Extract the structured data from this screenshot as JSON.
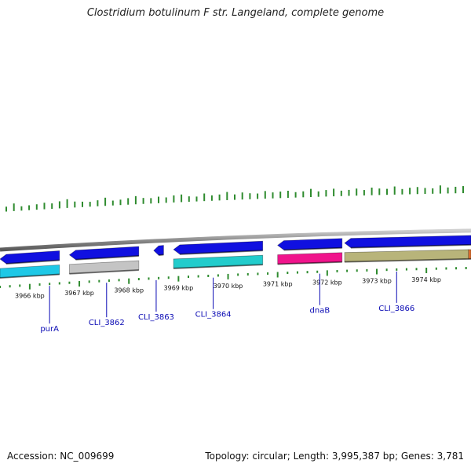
{
  "title": "Clostridium botulinum F str. Langeland, complete genome",
  "footer": {
    "accession": "Accession: NC_009699",
    "stats": "Topology: circular; Length: 3,995,387 bp; Genes: 3,781"
  },
  "colors": {
    "background": "#ffffff",
    "backbone": "#8c8c8c",
    "tick": "#2e8b2e",
    "label": "#0a0ab4",
    "strand_forward": "#1010e0",
    "gene_cyan": "#1ec8e6",
    "gene_gray": "#c4c4c4",
    "gene_teal": "#22cccc",
    "gene_pink": "#f0148c",
    "gene_khaki": "#b8b47a",
    "gene_orange": "#e07030"
  },
  "view": {
    "start_kbp": 3965.4,
    "end_kbp": 3974.9
  },
  "scale": {
    "labeled_ticks_kbp": [
      3966,
      3967,
      3968,
      3969,
      3970,
      3971,
      3972,
      3973,
      3974
    ],
    "label_suffix": " kbp"
  },
  "genes": [
    {
      "name": "purA",
      "strand": "reverse",
      "start_kbp": 3965.4,
      "end_kbp": 3966.6,
      "color": "#1010e0",
      "label_at_kbp": 3966.4,
      "label_tier": 2
    },
    {
      "name": "",
      "strand": "forward",
      "start_kbp": 3965.4,
      "end_kbp": 3966.6,
      "color": "#1ec8e6"
    },
    {
      "name": "CLI_3862",
      "strand": "reverse",
      "start_kbp": 3966.8,
      "end_kbp": 3968.2,
      "color": "#1010e0",
      "label_at_kbp": 3967.55,
      "label_tier": 1
    },
    {
      "name": "",
      "strand": "forward",
      "start_kbp": 3966.8,
      "end_kbp": 3968.2,
      "color": "#c4c4c4"
    },
    {
      "name": "CLI_3863",
      "strand": "reverse",
      "start_kbp": 3968.5,
      "end_kbp": 3968.7,
      "color": "#1010e0",
      "label_at_kbp": 3968.55,
      "label_tier": 0
    },
    {
      "name": "CLI_3864",
      "strand": "reverse",
      "start_kbp": 3968.9,
      "end_kbp": 3970.7,
      "color": "#1010e0",
      "label_at_kbp": 3969.7,
      "label_tier": 0
    },
    {
      "name": "",
      "strand": "forward",
      "start_kbp": 3968.9,
      "end_kbp": 3970.7,
      "color": "#22cccc"
    },
    {
      "name": "dnaB",
      "strand": "reverse",
      "start_kbp": 3971.0,
      "end_kbp": 3972.3,
      "color": "#1010e0",
      "label_at_kbp": 3971.85,
      "label_tier": 0
    },
    {
      "name": "",
      "strand": "forward",
      "start_kbp": 3971.0,
      "end_kbp": 3972.3,
      "color": "#f0148c"
    },
    {
      "name": "CLI_3866",
      "strand": "reverse",
      "start_kbp": 3972.35,
      "end_kbp": 3974.9,
      "color": "#1010e0",
      "label_at_kbp": 3973.4,
      "label_tier": 0
    },
    {
      "name": "",
      "strand": "forward",
      "start_kbp": 3972.35,
      "end_kbp": 3974.85,
      "color": "#b8b47a"
    },
    {
      "name": "",
      "strand": "forward",
      "start_kbp": 3974.85,
      "end_kbp": 3974.9,
      "color": "#e07030"
    }
  ],
  "gc_plot": {
    "description_free": true,
    "values": [
      0.3,
      0.55,
      0.25,
      0.3,
      0.35,
      0.45,
      0.35,
      0.5,
      0.65,
      0.4,
      0.35,
      0.3,
      0.4,
      0.6,
      0.3,
      0.35,
      0.45,
      0.6,
      0.4,
      0.35,
      0.45,
      0.35,
      0.5,
      0.55,
      0.35,
      0.3,
      0.55,
      0.35,
      0.4,
      0.6,
      0.35,
      0.5,
      0.4,
      0.35,
      0.55,
      0.4,
      0.45,
      0.5,
      0.35,
      0.4,
      0.6,
      0.35,
      0.45,
      0.55,
      0.35,
      0.4,
      0.5,
      0.35,
      0.55,
      0.45,
      0.4,
      0.6,
      0.35,
      0.45,
      0.5,
      0.4,
      0.35,
      0.6,
      0.4,
      0.45,
      0.5
    ]
  }
}
